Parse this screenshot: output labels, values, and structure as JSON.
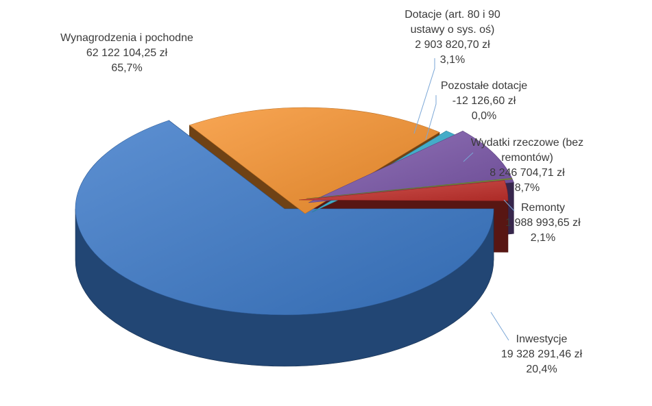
{
  "chart_data": {
    "type": "pie",
    "style": "3d-exploded",
    "title": "",
    "legend": "none",
    "slices": [
      {
        "label_lines": [
          "Wynagrodzenia i pochodne"
        ],
        "value": 62122104.25,
        "value_text": "62 122 104,25 zł",
        "percent_text": "65,7%",
        "color": "#3A78C8"
      },
      {
        "label_lines": [
          "Inwestycje"
        ],
        "value": 19328291.46,
        "value_text": "19 328 291,46 zł",
        "percent_text": "20,4%",
        "color": "#F7922E"
      },
      {
        "label_lines": [
          "Remonty"
        ],
        "value": 1988993.65,
        "value_text": "1 988 993,65 zł",
        "percent_text": "2,1%",
        "color": "#33AECF"
      },
      {
        "label_lines": [
          "Wydatki rzeczowe (bez",
          "remontów)"
        ],
        "value": 8246704.71,
        "value_text": "8 246 704,71 zł",
        "percent_text": "8,7%",
        "color": "#7A55A8"
      },
      {
        "label_lines": [
          "Pozostałe dotacje"
        ],
        "value": -12126.6,
        "value_text": "-12 126,60 zł",
        "percent_text": "0,0%",
        "color": "#7F9A2E"
      },
      {
        "label_lines": [
          "Dotacje (art. 80 i 90",
          "ustawy o sys. oś)"
        ],
        "value": 2903820.7,
        "value_text": "2 903 820,70 zł",
        "percent_text": "3,1%",
        "color": "#C4302B"
      }
    ]
  }
}
